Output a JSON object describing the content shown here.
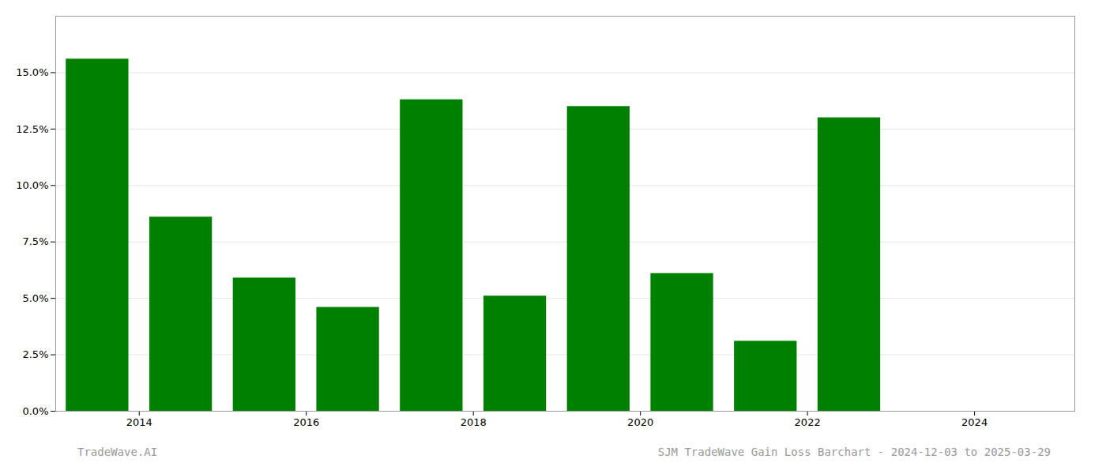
{
  "chart_data": {
    "type": "bar",
    "x": [
      2013.5,
      2014.5,
      2015.5,
      2016.5,
      2017.5,
      2018.5,
      2019.5,
      2020.5,
      2021.5,
      2022.5,
      2023.5
    ],
    "values": [
      0.156,
      0.086,
      0.059,
      0.046,
      0.138,
      0.051,
      0.135,
      0.061,
      0.031,
      0.13,
      0.0
    ],
    "color": "#008000",
    "xlim": [
      2013.0,
      2025.2
    ],
    "xticks": [
      2014,
      2016,
      2018,
      2020,
      2022,
      2024
    ],
    "ylim": [
      0,
      0.175
    ],
    "yticks": [
      {
        "value": 0.0,
        "label": "0.0%"
      },
      {
        "value": 0.025,
        "label": "2.5%"
      },
      {
        "value": 0.05,
        "label": "5.0%"
      },
      {
        "value": 0.075,
        "label": "7.5%"
      },
      {
        "value": 0.1,
        "label": "10.0%"
      },
      {
        "value": 0.125,
        "label": "12.5%"
      },
      {
        "value": 0.15,
        "label": "15.0%"
      }
    ],
    "grid": true,
    "annotations": [
      "TradeWave.AI",
      "SJM TradeWave Gain Loss Barchart - 2024-12-03 to 2025-03-29"
    ]
  }
}
